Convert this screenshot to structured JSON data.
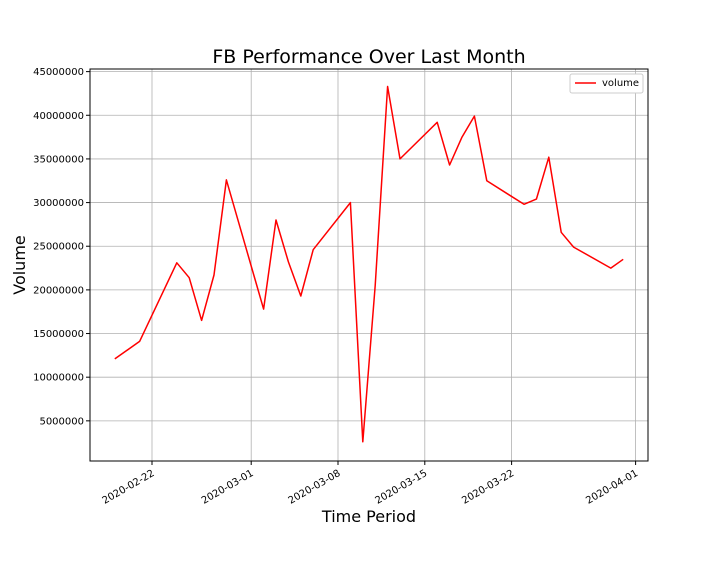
{
  "chart_data": {
    "type": "line",
    "title": "FB Performance Over Last Month",
    "xlabel": "Time Period",
    "ylabel": "Volume",
    "grid": true,
    "legend_position": "top-right",
    "x_ticks": [
      "2020-02-22",
      "2020-03-01",
      "2020-03-08",
      "2020-03-15",
      "2020-03-22",
      "2020-04-01"
    ],
    "y_ticks": [
      "5000000",
      "10000000",
      "15000000",
      "20000000",
      "25000000",
      "30000000",
      "35000000",
      "40000000",
      "45000000"
    ],
    "xlim": [
      "2020-02-17",
      "2020-04-02"
    ],
    "ylim": [
      400000,
      45300000
    ],
    "series": [
      {
        "name": "volume",
        "color": "#ff0000",
        "x": [
          "2020-02-19",
          "2020-02-21",
          "2020-02-24",
          "2020-02-25",
          "2020-02-26",
          "2020-02-27",
          "2020-02-28",
          "2020-03-02",
          "2020-03-03",
          "2020-03-04",
          "2020-03-05",
          "2020-03-06",
          "2020-03-09",
          "2020-03-10",
          "2020-03-11",
          "2020-03-12",
          "2020-03-13",
          "2020-03-16",
          "2020-03-17",
          "2020-03-18",
          "2020-03-19",
          "2020-03-20",
          "2020-03-23",
          "2020-03-24",
          "2020-03-25",
          "2020-03-26",
          "2020-03-27",
          "2020-03-30",
          "2020-03-31"
        ],
        "values": [
          12100000,
          14100000,
          23100000,
          21400000,
          16500000,
          21700000,
          32600000,
          17800000,
          28000000,
          23200000,
          19300000,
          24600000,
          30000000,
          2600000,
          20500000,
          43300000,
          35000000,
          39200000,
          34300000,
          37500000,
          39900000,
          32500000,
          29800000,
          30400000,
          35200000,
          26600000,
          24900000,
          22500000,
          23500000
        ]
      }
    ]
  }
}
